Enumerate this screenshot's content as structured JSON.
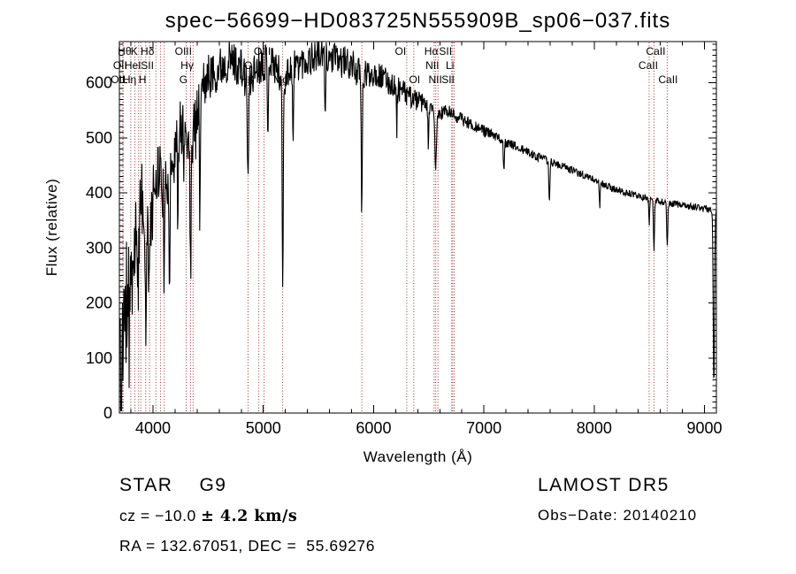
{
  "title": "spec−56699−HD083725N555909B_sp06−037.fits",
  "axes": {
    "xlabel": "Wavelength (Å)",
    "ylabel": "Flux (relative)",
    "xticks": [
      4000,
      5000,
      6000,
      7000,
      8000,
      9000
    ],
    "yticks": [
      0,
      100,
      200,
      300,
      400,
      500,
      600
    ],
    "xlim": [
      3695,
      9108
    ],
    "ylim": [
      0,
      675
    ],
    "x_minor_step": 200,
    "y_minor_step": 10
  },
  "annotations": {
    "class_label": "STAR",
    "subclass": "G9",
    "cz_prefix": "cz = −10.0 ",
    "cz_error": "± 4.2 km/s",
    "ra_dec": "RA = 132.67051, DEC =  55.69276",
    "survey": "LAMOST DR5",
    "obs_date": "Obs−Date: 20140210"
  },
  "colors": {
    "background": "#ffffff",
    "curve": "#000000",
    "frame": "#000000",
    "text": "#000000",
    "line_marker": "#9b2d2d"
  },
  "chart_data": {
    "type": "line",
    "title": "spec−56699−HD083725N555909B_sp06−037.fits",
    "xlabel": "Wavelength (Å)",
    "ylabel": "Flux (relative)",
    "xlim": [
      3695,
      9108
    ],
    "ylim": [
      0,
      675
    ],
    "x_units": "Angstrom",
    "grid": false,
    "sample_step": 4,
    "noise_seed": 11,
    "envelope": [
      [
        3695,
        170
      ],
      [
        3706,
        80
      ],
      [
        3712,
        40
      ],
      [
        3720,
        190
      ],
      [
        3728,
        120
      ],
      [
        3736,
        220
      ],
      [
        3745,
        150
      ],
      [
        3755,
        235
      ],
      [
        3765,
        180
      ],
      [
        3775,
        245
      ],
      [
        3790,
        225
      ],
      [
        3805,
        275
      ],
      [
        3820,
        300
      ],
      [
        3840,
        325
      ],
      [
        3860,
        310
      ],
      [
        3880,
        345
      ],
      [
        3905,
        385
      ],
      [
        3935,
        340
      ],
      [
        3970,
        370
      ],
      [
        4000,
        420
      ],
      [
        4050,
        445
      ],
      [
        4100,
        415
      ],
      [
        4150,
        435
      ],
      [
        4200,
        478
      ],
      [
        4250,
        520
      ],
      [
        4300,
        505
      ],
      [
        4350,
        490
      ],
      [
        4400,
        560
      ],
      [
        4450,
        592
      ],
      [
        4500,
        612
      ],
      [
        4550,
        616
      ],
      [
        4600,
        626
      ],
      [
        4650,
        636
      ],
      [
        4700,
        641
      ],
      [
        4750,
        636
      ],
      [
        4800,
        626
      ],
      [
        4861,
        592
      ],
      [
        4920,
        622
      ],
      [
        4980,
        636
      ],
      [
        5040,
        641
      ],
      [
        5100,
        636
      ],
      [
        5175,
        602
      ],
      [
        5240,
        626
      ],
      [
        5320,
        636
      ],
      [
        5400,
        641
      ],
      [
        5500,
        651
      ],
      [
        5600,
        646
      ],
      [
        5700,
        639
      ],
      [
        5800,
        633
      ],
      [
        5893,
        612
      ],
      [
        6000,
        619
      ],
      [
        6100,
        606
      ],
      [
        6200,
        593
      ],
      [
        6300,
        579
      ],
      [
        6400,
        567
      ],
      [
        6500,
        557
      ],
      [
        6563,
        537
      ],
      [
        6650,
        549
      ],
      [
        6750,
        539
      ],
      [
        6850,
        529
      ],
      [
        7000,
        513
      ],
      [
        7150,
        497
      ],
      [
        7300,
        483
      ],
      [
        7450,
        469
      ],
      [
        7600,
        457
      ],
      [
        7750,
        445
      ],
      [
        7900,
        433
      ],
      [
        8050,
        419
      ],
      [
        8200,
        405
      ],
      [
        8350,
        397
      ],
      [
        8500,
        389
      ],
      [
        8650,
        382
      ],
      [
        8800,
        378
      ],
      [
        8950,
        373
      ],
      [
        9050,
        370
      ],
      [
        9108,
        368
      ]
    ],
    "noise_amplitude": [
      [
        3695,
        115
      ],
      [
        3750,
        105
      ],
      [
        3800,
        92
      ],
      [
        3850,
        85
      ],
      [
        3900,
        78
      ],
      [
        3950,
        72
      ],
      [
        4000,
        66
      ],
      [
        4100,
        60
      ],
      [
        4200,
        54
      ],
      [
        4300,
        50
      ],
      [
        4400,
        46
      ],
      [
        4500,
        42
      ],
      [
        4700,
        38
      ],
      [
        4900,
        36
      ],
      [
        5100,
        34
      ],
      [
        5300,
        32
      ],
      [
        5500,
        31
      ],
      [
        5800,
        29
      ],
      [
        6000,
        25
      ],
      [
        6300,
        21
      ],
      [
        6600,
        14
      ],
      [
        6900,
        11
      ],
      [
        7200,
        9
      ],
      [
        7600,
        7.5
      ],
      [
        8000,
        6.5
      ],
      [
        8500,
        6
      ],
      [
        9108,
        7
      ]
    ],
    "absorption_dips": [
      [
        3712,
        150,
        4
      ],
      [
        3933.7,
        160,
        8
      ],
      [
        3968.5,
        140,
        8
      ],
      [
        4101.7,
        160,
        6
      ],
      [
        4150,
        190,
        4
      ],
      [
        4226,
        165,
        4
      ],
      [
        4340.5,
        200,
        6
      ],
      [
        4425,
        215,
        4
      ],
      [
        4861.3,
        170,
        6
      ],
      [
        5040,
        150,
        4
      ],
      [
        5175.3,
        365,
        5
      ],
      [
        5270,
        155,
        4
      ],
      [
        5560,
        120,
        4
      ],
      [
        5893,
        245,
        5
      ],
      [
        6210,
        75,
        4
      ],
      [
        6495,
        65,
        4
      ],
      [
        6562.8,
        100,
        6
      ],
      [
        7180,
        55,
        4
      ],
      [
        7594,
        70,
        5
      ],
      [
        8050,
        45,
        4
      ],
      [
        8498,
        45,
        4
      ],
      [
        8542.1,
        90,
        5
      ],
      [
        8662.1,
        82,
        5
      ],
      [
        9085,
        315,
        6
      ]
    ],
    "spectral_lines": [
      3726,
      3728.8,
      3798,
      3835.4,
      3869,
      3889,
      3933.7,
      3968.5,
      4026.2,
      4068.6,
      4101.7,
      4300,
      4340.5,
      4363.2,
      4861.3,
      4959,
      5006.8,
      5175.3,
      5893,
      6300.3,
      6363.8,
      6548.1,
      6562.8,
      6583.5,
      6707.8,
      6716.4,
      6730.8,
      8498,
      8542.1,
      8662.1
    ],
    "line_labels": [
      {
        "text": "Hθ",
        "row": 1,
        "wl": 3798,
        "dx": -7
      },
      {
        "text": "K",
        "row": 1,
        "wl": 3933.7,
        "dx": -13
      },
      {
        "text": "Hδ",
        "row": 1,
        "wl": 4101.7,
        "dx": -19
      },
      {
        "text": "OIII",
        "row": 1,
        "wl": 4363.2,
        "dx": -11
      },
      {
        "text": "OIII",
        "row": 1,
        "wl": 5006.8,
        "dx": -2
      },
      {
        "text": "OI",
        "row": 1,
        "wl": 6300.3,
        "dx": -7
      },
      {
        "text": "Hα",
        "row": 1,
        "wl": 6562.8,
        "dx": -5
      },
      {
        "text": "SII",
        "row": 1,
        "wl": 6716.4,
        "dx": -8
      },
      {
        "text": "CaII",
        "row": 1,
        "wl": 8542.1,
        "dx": 2
      },
      {
        "text": "OII",
        "row": 2,
        "wl": 3726,
        "dx": -3
      },
      {
        "text": "HeI",
        "row": 2,
        "wl": 3889,
        "dx": -9
      },
      {
        "text": "SII",
        "row": 2,
        "wl": 4068.6,
        "dx": -15
      },
      {
        "text": "Hγ",
        "row": 2,
        "wl": 4340.5,
        "dx": -4
      },
      {
        "text": "OIII",
        "row": 2,
        "wl": 4959,
        "dx": -7
      },
      {
        "text": "NII",
        "row": 2,
        "wl": 6548.1,
        "dx": -2
      },
      {
        "text": "Li",
        "row": 2,
        "wl": 6707.8,
        "dx": -2
      },
      {
        "text": "CaII",
        "row": 2,
        "wl": 8498,
        "dx": -1
      },
      {
        "text": "OII",
        "row": 3,
        "wl": 3728.8,
        "dx": -6
      },
      {
        "text": "Hη",
        "row": 3,
        "wl": 3835.4,
        "dx": -6
      },
      {
        "text": "H",
        "row": 3,
        "wl": 3968.5,
        "dx": -8
      },
      {
        "text": "G",
        "row": 3,
        "wl": 4300,
        "dx": -3
      },
      {
        "text": "Hβ",
        "row": 3,
        "wl": 4861.3,
        "dx": -1
      },
      {
        "text": "Mg",
        "row": 3,
        "wl": 5175.3,
        "dx": -2
      },
      {
        "text": "OI",
        "row": 3,
        "wl": 6363.8,
        "dx": 1
      },
      {
        "text": "NII",
        "row": 3,
        "wl": 6583.5,
        "dx": -3
      },
      {
        "text": "SII",
        "row": 3,
        "wl": 6730.8,
        "dx": -7
      },
      {
        "text": "CaII",
        "row": 3,
        "wl": 8662.1,
        "dx": 1
      }
    ]
  }
}
